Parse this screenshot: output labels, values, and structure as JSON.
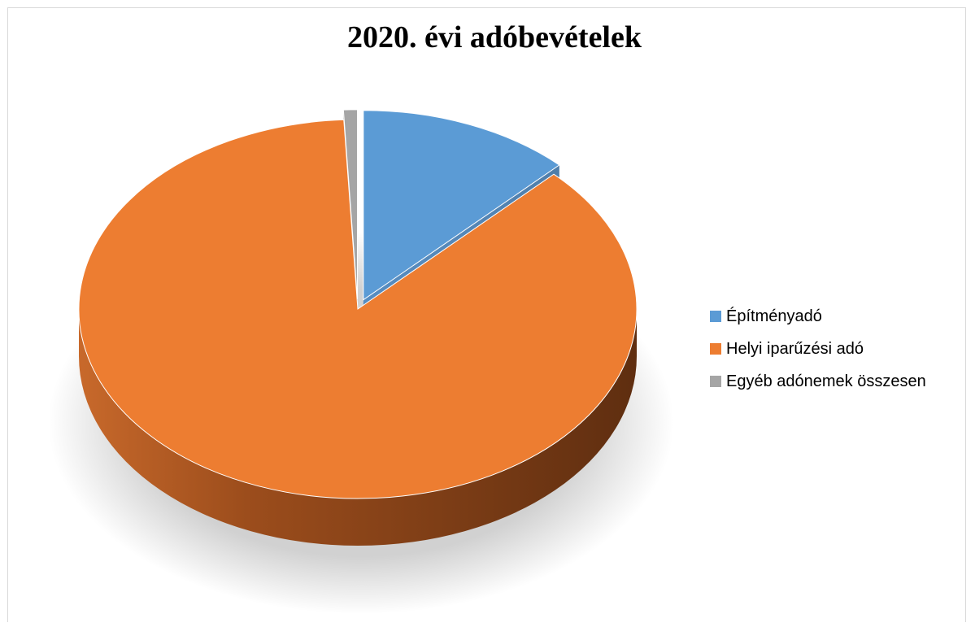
{
  "chart_data": {
    "type": "pie",
    "title": "2020. évi adóbevételek",
    "categories": [
      "Építményadó",
      "Helyi iparűzési adó",
      "Egyéb adónemek összesen"
    ],
    "values": [
      12.4,
      86.8,
      0.8
    ],
    "unit": "%",
    "colors": [
      "#5b9bd5",
      "#ed7d31",
      "#a5a5a5"
    ],
    "exploded": [
      true,
      false,
      true
    ],
    "style": "3d",
    "legend_position": "right"
  }
}
